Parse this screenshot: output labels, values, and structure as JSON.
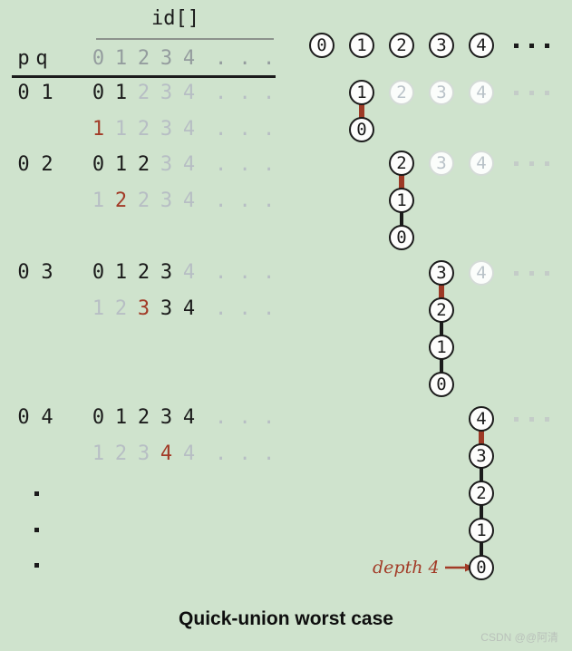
{
  "colors": {
    "bg": "#cfe3cd",
    "black": "#1b1b1b",
    "header_gray": "#949c9e",
    "faded_gray": "#b7bec4",
    "red": "#a23b27",
    "red_edge": "#9d3a26",
    "faded_circle_border": "#d4dbd7",
    "faded_circle_text": "#b9c2c8",
    "circle_fill": "#fdfdfc",
    "tree_dot_gray": "#c4ccc8",
    "rule_gray": "#8d938d",
    "watermark_gray": "#b9c1ba"
  },
  "table": {
    "id_header": "id[]",
    "p_label": "p",
    "q_label": "q",
    "header_cells": [
      "0",
      "1",
      "2",
      "3",
      "4",
      ". . ."
    ],
    "rows": [
      {
        "p": "0",
        "q": "1",
        "cells": [
          [
            "0",
            "black"
          ],
          [
            "1",
            "black"
          ],
          [
            "2",
            "gray"
          ],
          [
            "3",
            "gray"
          ],
          [
            "4",
            "gray"
          ],
          [
            ". . .",
            "gray"
          ]
        ]
      },
      {
        "p": "",
        "q": "",
        "cells": [
          [
            "1",
            "red"
          ],
          [
            "1",
            "gray"
          ],
          [
            "2",
            "gray"
          ],
          [
            "3",
            "gray"
          ],
          [
            "4",
            "gray"
          ],
          [
            ". . .",
            "gray"
          ]
        ]
      },
      {
        "p": "0",
        "q": "2",
        "cells": [
          [
            "0",
            "black"
          ],
          [
            "1",
            "black"
          ],
          [
            "2",
            "black"
          ],
          [
            "3",
            "gray"
          ],
          [
            "4",
            "gray"
          ],
          [
            ". . .",
            "gray"
          ]
        ]
      },
      {
        "p": "",
        "q": "",
        "cells": [
          [
            "1",
            "gray"
          ],
          [
            "2",
            "red"
          ],
          [
            "2",
            "gray"
          ],
          [
            "3",
            "gray"
          ],
          [
            "4",
            "gray"
          ],
          [
            ". . .",
            "gray"
          ]
        ]
      },
      {
        "p": "0",
        "q": "3",
        "cells": [
          [
            "0",
            "black"
          ],
          [
            "1",
            "black"
          ],
          [
            "2",
            "black"
          ],
          [
            "3",
            "black"
          ],
          [
            "4",
            "gray"
          ],
          [
            ". . .",
            "gray"
          ]
        ]
      },
      {
        "p": "",
        "q": "",
        "cells": [
          [
            "1",
            "gray"
          ],
          [
            "2",
            "gray"
          ],
          [
            "3",
            "red"
          ],
          [
            "3",
            "black"
          ],
          [
            "4",
            "black"
          ],
          [
            ". . .",
            "gray"
          ]
        ]
      },
      {
        "p": "0",
        "q": "4",
        "cells": [
          [
            "0",
            "black"
          ],
          [
            "1",
            "black"
          ],
          [
            "2",
            "black"
          ],
          [
            "3",
            "black"
          ],
          [
            "4",
            "black"
          ],
          [
            ". . .",
            "gray"
          ]
        ]
      },
      {
        "p": "",
        "q": "",
        "cells": [
          [
            "1",
            "gray"
          ],
          [
            "2",
            "gray"
          ],
          [
            "3",
            "gray"
          ],
          [
            "4",
            "red"
          ],
          [
            "4",
            "gray"
          ],
          [
            ". . .",
            "gray"
          ]
        ]
      }
    ],
    "continuation_dots": [
      "·",
      "·",
      "·"
    ]
  },
  "trees": [
    {
      "circles": [
        "0",
        "1",
        "2",
        "3",
        "4"
      ],
      "dots": "black"
    },
    {
      "chain": [
        "1",
        "0"
      ],
      "col": 1,
      "faded": [
        "2",
        "3",
        "4"
      ],
      "dots": "gray"
    },
    {
      "chain": [
        "2",
        "1",
        "0"
      ],
      "col": 2,
      "faded": [
        "3",
        "4"
      ],
      "dots": "gray"
    },
    {
      "chain": [
        "3",
        "2",
        "1",
        "0"
      ],
      "col": 3,
      "faded": [
        "4"
      ],
      "dots": "gray"
    },
    {
      "chain": [
        "4",
        "3",
        "2",
        "1",
        "0"
      ],
      "col": 4,
      "faded": [],
      "dots": "gray",
      "depth_label": "depth 4"
    }
  ],
  "caption": "Quick-union worst case",
  "watermark": "CSDN @@阿清"
}
